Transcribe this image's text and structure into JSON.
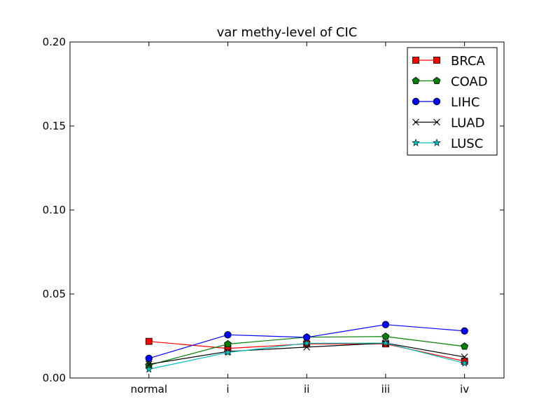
{
  "chart_data": {
    "type": "line",
    "title": "var methy-level of CIC",
    "xlabel": "",
    "ylabel": "",
    "categories": [
      "normal",
      "i",
      "ii",
      "iii",
      "iv"
    ],
    "ylim": [
      0.0,
      0.2
    ],
    "yticks": [
      0.0,
      0.05,
      0.1,
      0.15,
      0.2
    ],
    "ytick_labels": [
      "0.00",
      "0.05",
      "0.10",
      "0.15",
      "0.20"
    ],
    "grid": false,
    "legend_position": "top-right",
    "series": [
      {
        "name": "BRCA",
        "color": "#ff0000",
        "marker": "square",
        "values": [
          0.0218,
          0.0176,
          0.0203,
          0.0203,
          0.01
        ]
      },
      {
        "name": "COAD",
        "color": "#008000",
        "marker": "pentagon",
        "values": [
          0.0076,
          0.0202,
          0.0243,
          0.0247,
          0.0188
        ]
      },
      {
        "name": "LIHC",
        "color": "#0000ff",
        "marker": "circle",
        "values": [
          0.0117,
          0.0257,
          0.0242,
          0.0318,
          0.028
        ]
      },
      {
        "name": "LUAD",
        "color": "#000000",
        "marker": "x",
        "values": [
          0.0082,
          0.0158,
          0.0184,
          0.0208,
          0.0125
        ]
      },
      {
        "name": "LUSC",
        "color": "#00bfbf",
        "marker": "star",
        "values": [
          0.0052,
          0.0152,
          0.0207,
          0.0208,
          0.0088
        ]
      }
    ]
  }
}
